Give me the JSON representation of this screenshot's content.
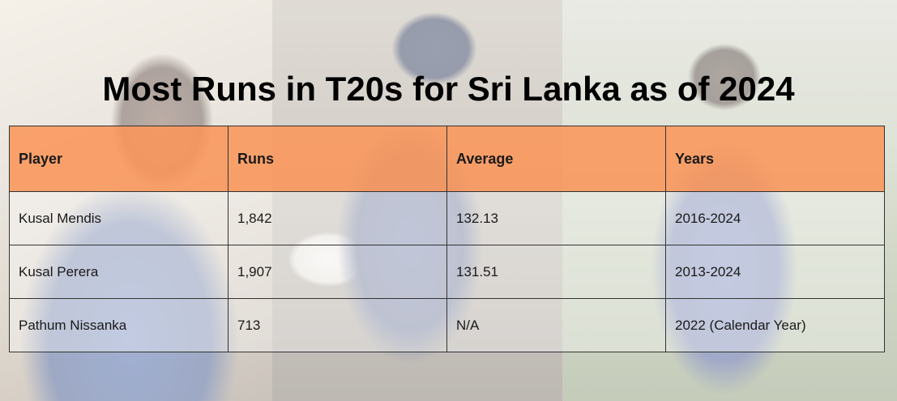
{
  "title": "Most Runs in T20s for Sri Lanka as of 2024",
  "table": {
    "headers": [
      "Player",
      "Runs",
      "Average",
      "Years"
    ],
    "rows": [
      [
        "Kusal Mendis",
        "1,842",
        "132.13",
        "2016-2024"
      ],
      [
        "Kusal Perera",
        "1,907",
        "131.51",
        "2013-2024"
      ],
      [
        "Pathum Nissanka",
        "713",
        "N/A",
        "2022 (Calendar Year)"
      ]
    ]
  },
  "colors": {
    "header_bg": "#FA965A",
    "border": "#333333",
    "text": "#1A1A1A"
  }
}
